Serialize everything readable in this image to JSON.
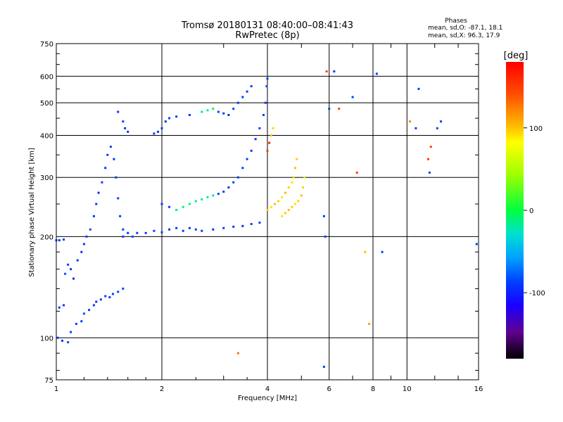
{
  "chart_data": {
    "type": "scatter",
    "title": "Tromsø 20180131 08:40:00–08:41:43",
    "subtitle": "RwPretec (8p)",
    "stats": {
      "heading": "Phases",
      "line1": "mean, sd,O: -87.1, 18.1",
      "line2": "mean, sd,X:  96.3, 17.9"
    },
    "xlabel": "Frequency [MHz]",
    "ylabel": "Stationary phase Virtual Height [km]",
    "xscale": "log",
    "yscale": "log",
    "xlim": [
      1,
      16
    ],
    "ylim": [
      75,
      750
    ],
    "xticks": [
      1,
      2,
      4,
      6,
      8,
      10,
      16
    ],
    "xtick_labels": [
      "1",
      "2",
      "4",
      "6",
      "8",
      "10",
      "16"
    ],
    "yticks": [
      75,
      100,
      200,
      300,
      400,
      500,
      600,
      750
    ],
    "ytick_labels": [
      "75",
      "100",
      "200",
      "300",
      "400",
      "500",
      "600",
      "750"
    ],
    "grid": true,
    "colorbar": {
      "label": "[deg]",
      "range": [
        -180,
        180
      ],
      "ticks": [
        100,
        0,
        -100
      ],
      "tick_labels": [
        "100",
        "0",
        "-100"
      ]
    },
    "series": [
      {
        "values": [
          [
            1.0,
            195,
            -90
          ],
          [
            1.02,
            195,
            -95
          ],
          [
            1.05,
            196,
            -92
          ],
          [
            1.06,
            155,
            -85
          ],
          [
            1.08,
            165,
            -90
          ],
          [
            1.1,
            160,
            -95
          ],
          [
            1.12,
            150,
            -100
          ],
          [
            1.05,
            125,
            -95
          ],
          [
            1.02,
            123,
            -90
          ],
          [
            1.01,
            100,
            -90
          ],
          [
            1.04,
            98,
            -95
          ],
          [
            1.08,
            97,
            -88
          ],
          [
            1.1,
            104,
            -92
          ],
          [
            1.14,
            110,
            -90
          ],
          [
            1.18,
            112,
            -95
          ],
          [
            1.2,
            118,
            -85
          ],
          [
            1.24,
            121,
            -90
          ],
          [
            1.28,
            125,
            -92
          ],
          [
            1.3,
            128,
            -95
          ],
          [
            1.34,
            130,
            -88
          ],
          [
            1.38,
            133,
            -90
          ],
          [
            1.42,
            132,
            -95
          ],
          [
            1.45,
            135,
            -92
          ],
          [
            1.5,
            137,
            -90
          ],
          [
            1.55,
            140,
            -88
          ],
          [
            1.15,
            170,
            -95
          ],
          [
            1.18,
            180,
            -95
          ],
          [
            1.2,
            190,
            -92
          ],
          [
            1.22,
            200,
            -90
          ],
          [
            1.25,
            210,
            -88
          ],
          [
            1.28,
            230,
            -92
          ],
          [
            1.3,
            250,
            -95
          ],
          [
            1.32,
            270,
            -100
          ],
          [
            1.35,
            290,
            -90
          ],
          [
            1.38,
            320,
            -95
          ],
          [
            1.4,
            350,
            -92
          ],
          [
            1.43,
            370,
            -90
          ],
          [
            1.46,
            340,
            -95
          ],
          [
            1.48,
            300,
            -92
          ],
          [
            1.5,
            260,
            -90
          ],
          [
            1.52,
            230,
            -88
          ],
          [
            1.55,
            210,
            -92
          ],
          [
            1.5,
            470,
            -95
          ],
          [
            1.55,
            440,
            -90
          ],
          [
            1.57,
            420,
            -92
          ],
          [
            1.6,
            410,
            -95
          ],
          [
            1.55,
            200,
            -92
          ],
          [
            1.6,
            205,
            -95
          ],
          [
            1.65,
            200,
            -90
          ],
          [
            1.7,
            205,
            -92
          ],
          [
            1.8,
            205,
            -95
          ],
          [
            1.9,
            208,
            -90
          ],
          [
            2.0,
            206,
            -92
          ],
          [
            2.1,
            210,
            -95
          ],
          [
            2.2,
            212,
            -90
          ],
          [
            2.3,
            208,
            -92
          ],
          [
            2.4,
            212,
            -95
          ],
          [
            2.5,
            210,
            -90
          ],
          [
            2.6,
            208,
            -92
          ],
          [
            2.8,
            210,
            -95
          ],
          [
            3.0,
            212,
            -90
          ],
          [
            3.2,
            214,
            -92
          ],
          [
            3.4,
            215,
            -95
          ],
          [
            3.6,
            218,
            -90
          ],
          [
            3.8,
            220,
            -92
          ],
          [
            2.0,
            250,
            -95
          ],
          [
            2.1,
            245,
            -90
          ],
          [
            2.2,
            240,
            -20
          ],
          [
            2.3,
            245,
            -10
          ],
          [
            2.4,
            250,
            -15
          ],
          [
            2.5,
            255,
            -20
          ],
          [
            2.6,
            258,
            -10
          ],
          [
            2.7,
            262,
            -15
          ],
          [
            2.8,
            265,
            -25
          ],
          [
            2.9,
            268,
            -90
          ],
          [
            3.0,
            272,
            -92
          ],
          [
            3.1,
            280,
            -95
          ],
          [
            3.2,
            290,
            -90
          ],
          [
            3.3,
            300,
            -92
          ],
          [
            3.4,
            320,
            -95
          ],
          [
            3.5,
            340,
            -90
          ],
          [
            3.6,
            360,
            -92
          ],
          [
            3.7,
            390,
            -95
          ],
          [
            3.8,
            420,
            -90
          ],
          [
            3.9,
            460,
            -92
          ],
          [
            3.95,
            500,
            -95
          ],
          [
            3.98,
            560,
            -90
          ],
          [
            4.0,
            590,
            -92
          ],
          [
            1.9,
            405,
            -90
          ],
          [
            1.95,
            410,
            -95
          ],
          [
            2.0,
            420,
            -92
          ],
          [
            2.05,
            440,
            -95
          ],
          [
            2.1,
            450,
            -90
          ],
          [
            2.2,
            455,
            -92
          ],
          [
            2.4,
            460,
            -95
          ],
          [
            2.6,
            470,
            -20
          ],
          [
            2.7,
            475,
            -15
          ],
          [
            2.8,
            480,
            -10
          ],
          [
            2.9,
            470,
            -90
          ],
          [
            3.0,
            465,
            -92
          ],
          [
            3.1,
            460,
            -95
          ],
          [
            3.2,
            480,
            -90
          ],
          [
            3.3,
            500,
            -92
          ],
          [
            3.4,
            520,
            -95
          ],
          [
            3.5,
            540,
            -90
          ],
          [
            3.6,
            560,
            -92
          ],
          [
            4.0,
            240,
            95
          ],
          [
            4.1,
            245,
            90
          ],
          [
            4.2,
            250,
            100
          ],
          [
            4.3,
            255,
            95
          ],
          [
            4.4,
            262,
            90
          ],
          [
            4.5,
            270,
            100
          ],
          [
            4.6,
            280,
            95
          ],
          [
            4.7,
            290,
            90
          ],
          [
            4.75,
            300,
            95
          ],
          [
            4.8,
            320,
            100
          ],
          [
            4.85,
            340,
            95
          ],
          [
            4.4,
            230,
            90
          ],
          [
            4.5,
            235,
            95
          ],
          [
            4.6,
            240,
            100
          ],
          [
            4.7,
            245,
            95
          ],
          [
            4.8,
            250,
            90
          ],
          [
            4.9,
            255,
            95
          ],
          [
            5.0,
            265,
            100
          ],
          [
            5.05,
            280,
            95
          ],
          [
            5.1,
            300,
            90
          ],
          [
            4.0,
            360,
            150
          ],
          [
            4.05,
            380,
            160
          ],
          [
            4.1,
            400,
            100
          ],
          [
            4.15,
            420,
            95
          ],
          [
            5.8,
            230,
            -90
          ],
          [
            5.85,
            200,
            -90
          ],
          [
            5.9,
            620,
            150
          ],
          [
            6.0,
            480,
            -90
          ],
          [
            6.2,
            620,
            -90
          ],
          [
            6.4,
            480,
            150
          ],
          [
            7.0,
            520,
            -90
          ],
          [
            7.2,
            310,
            150
          ],
          [
            7.6,
            180,
            100
          ],
          [
            7.8,
            110,
            110
          ],
          [
            8.2,
            610,
            -90
          ],
          [
            8.5,
            180,
            -90
          ],
          [
            10.2,
            440,
            120
          ],
          [
            10.6,
            420,
            -90
          ],
          [
            10.8,
            550,
            -90
          ],
          [
            11.5,
            340,
            150
          ],
          [
            11.6,
            310,
            -90
          ],
          [
            11.7,
            370,
            150
          ],
          [
            12.2,
            420,
            -90
          ],
          [
            12.5,
            440,
            -90
          ],
          [
            15.8,
            190,
            -90
          ],
          [
            3.3,
            90,
            130
          ],
          [
            5.8,
            82,
            -90
          ]
        ]
      }
    ]
  }
}
